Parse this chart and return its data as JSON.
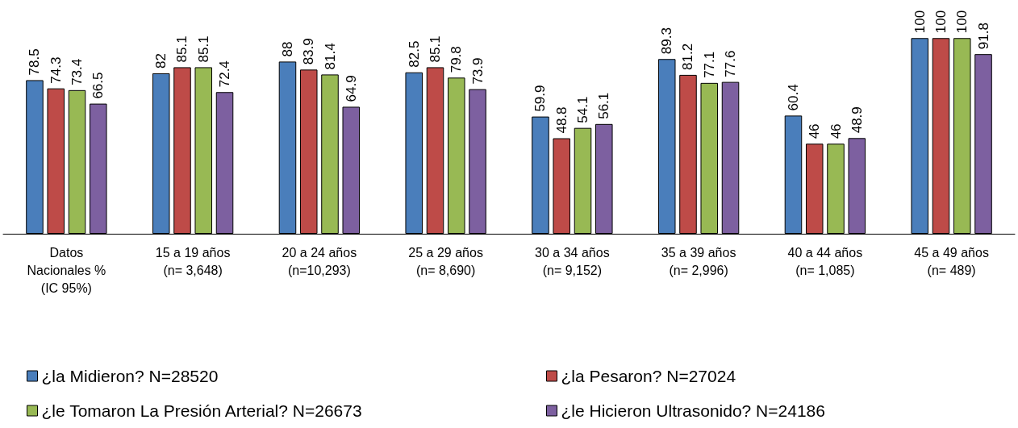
{
  "chart_data": {
    "type": "bar",
    "categories": [
      "Datos\nNacionales %\n(IC 95%)",
      "15 a 19 años\n(n= 3,648)",
      "20 a 24 años\n(n=10,293)",
      "25 a 29 años\n(n= 8,690)",
      "30 a 34 años\n(n= 9,152)",
      "35 a 39 años\n(n= 2,996)",
      "40 a 44 años\n(n= 1,085)",
      "45 a 49 años\n(n= 489)"
    ],
    "series": [
      {
        "name": "¿la Midieron? N=28520",
        "color": "#4a7ebb",
        "values": [
          78.5,
          82,
          88,
          82.5,
          59.9,
          89.3,
          60.4,
          100
        ]
      },
      {
        "name": "¿la Pesaron? N=27024",
        "color": "#be4b48",
        "values": [
          74.3,
          85.1,
          83.9,
          85.1,
          48.8,
          81.2,
          46,
          100
        ]
      },
      {
        "name": "¿le Tomaron La Presión Arterial? N=26673",
        "color": "#98b954",
        "values": [
          73.4,
          85.1,
          81.4,
          79.8,
          54.1,
          77.1,
          46,
          100
        ]
      },
      {
        "name": "¿le Hicieron Ultrasonido? N=24186",
        "color": "#7d60a0",
        "values": [
          66.5,
          72.4,
          64.9,
          73.9,
          56.1,
          77.6,
          48.9,
          91.8
        ]
      }
    ],
    "data_labels": true,
    "legend": "bottom"
  }
}
